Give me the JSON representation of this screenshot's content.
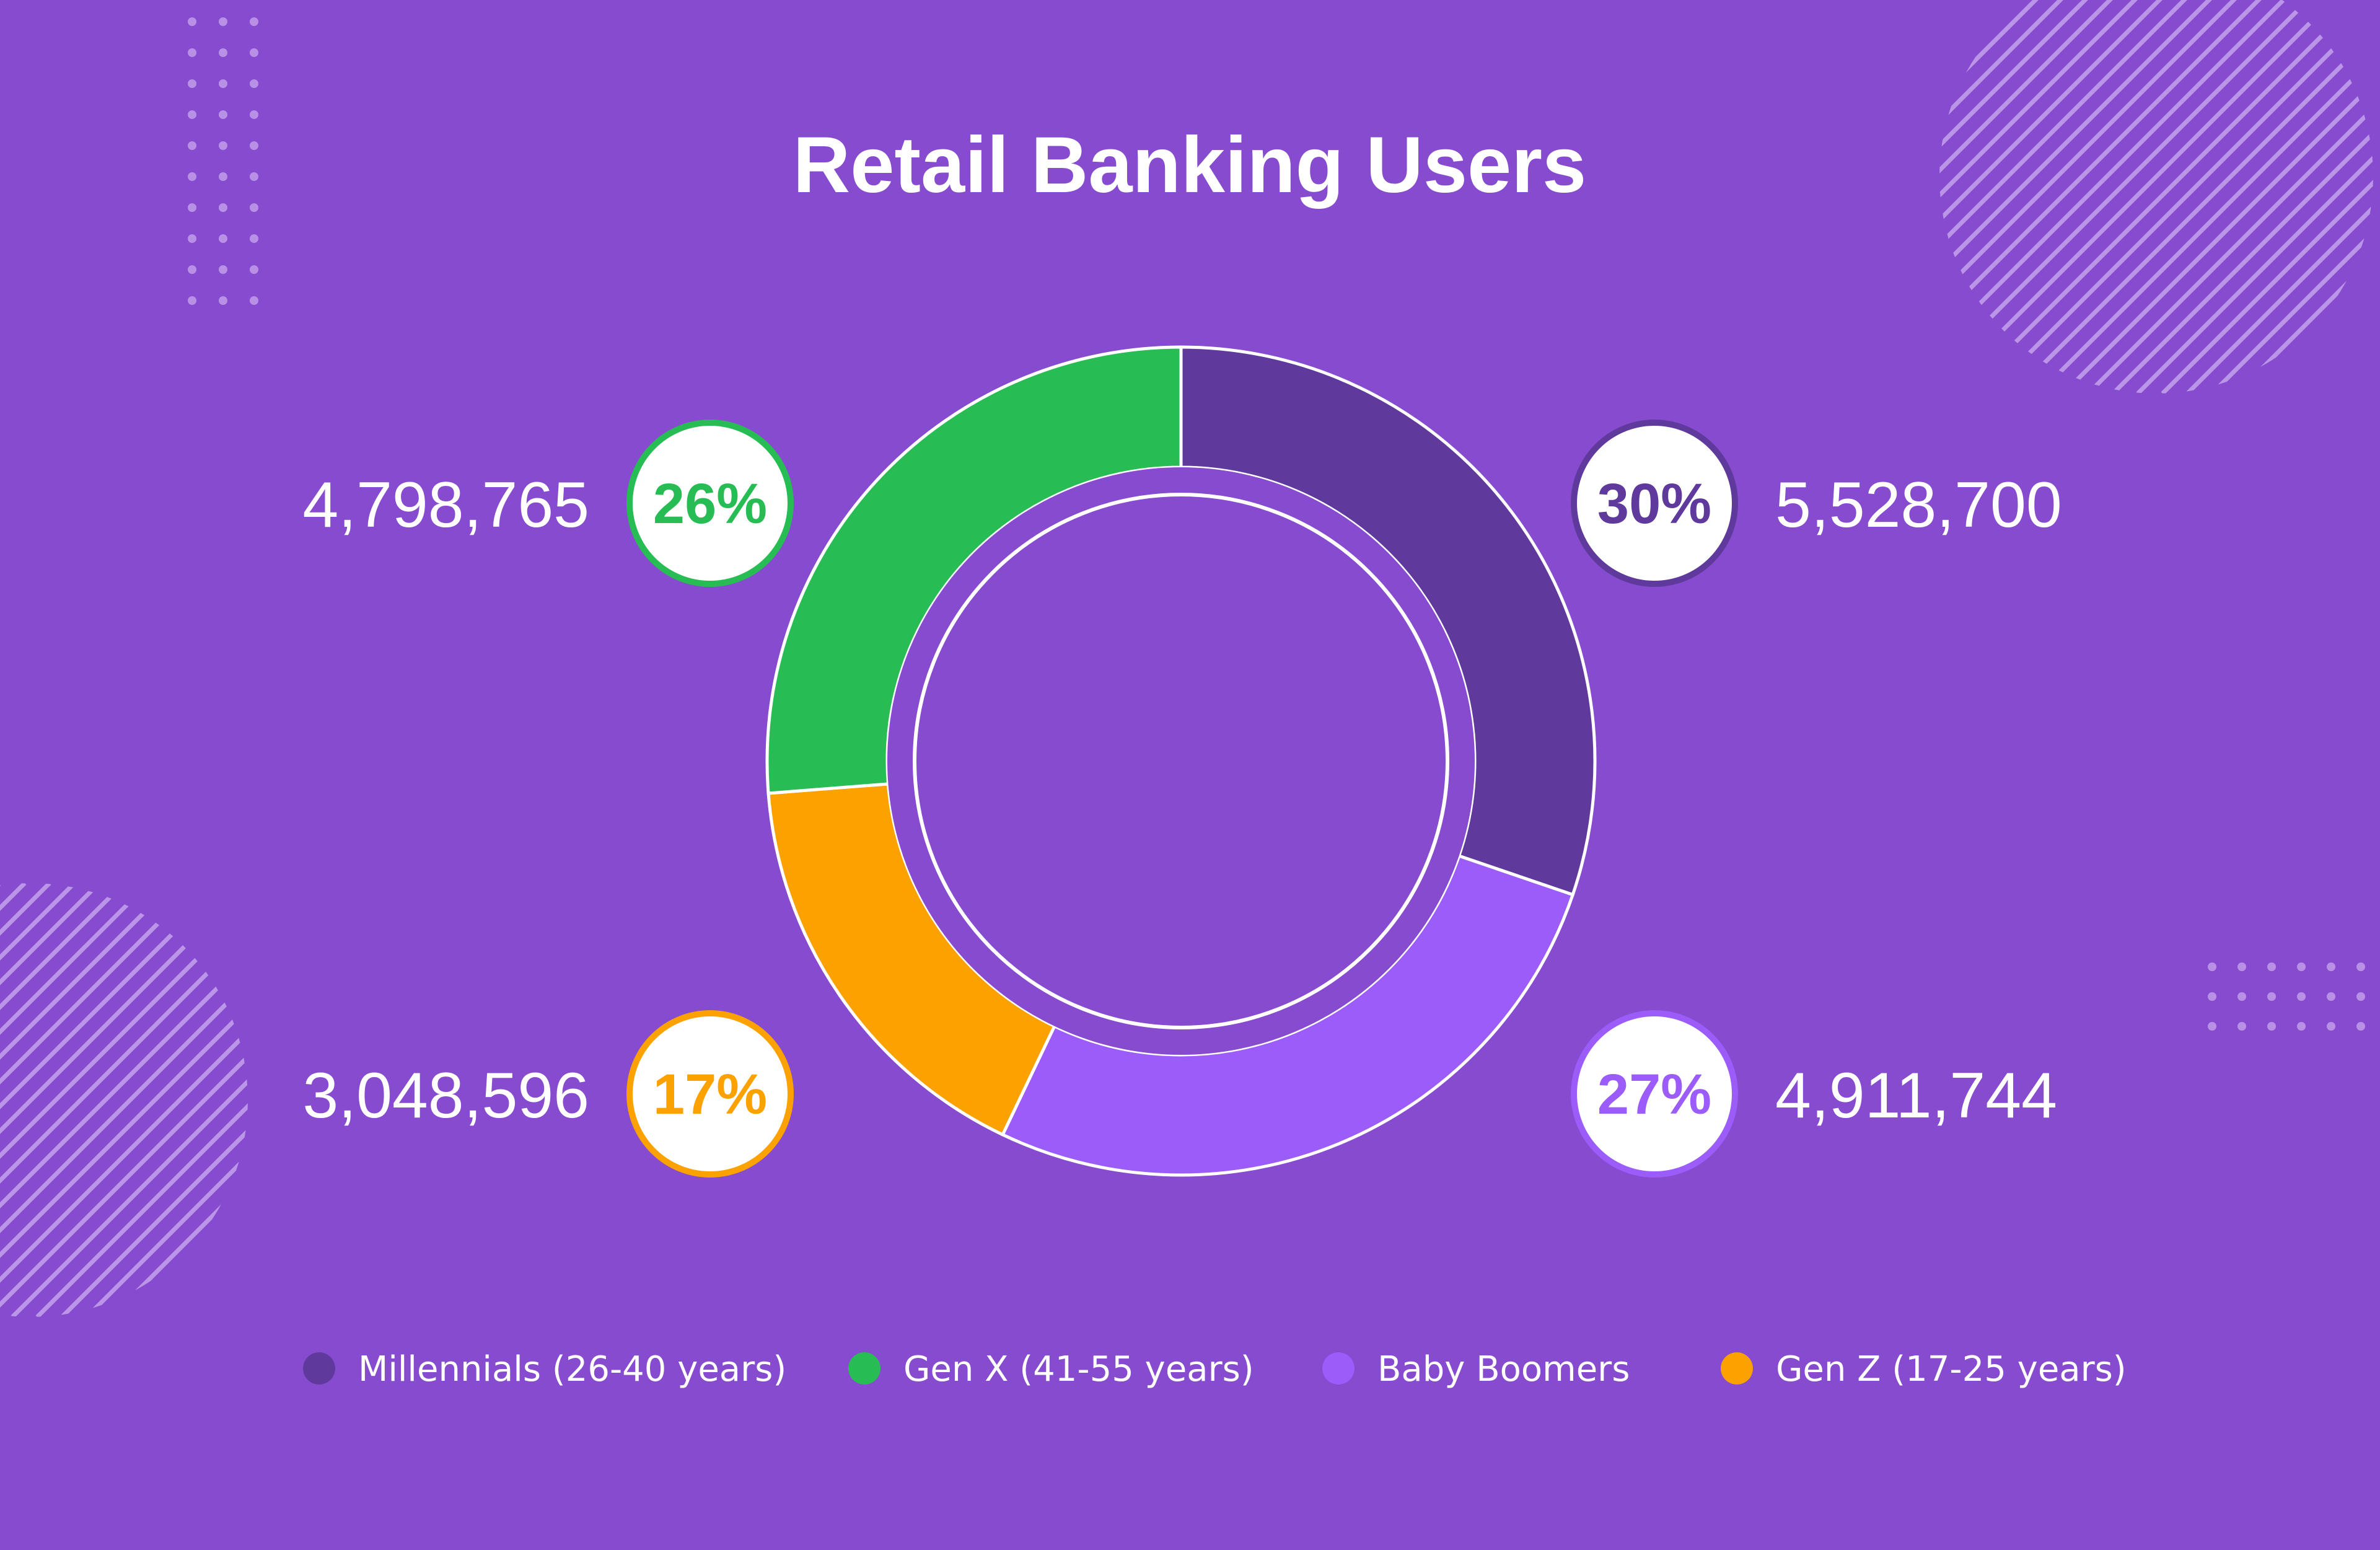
{
  "colors": {
    "background": "#864bce",
    "decor": "#c8a8ee",
    "ring_outline": "#ffffff"
  },
  "chart_data": {
    "type": "pie",
    "title": "Retail Banking Users",
    "donut": true,
    "series": [
      {
        "name": "Millennials (26-40 years)",
        "value": 5528700,
        "value_label": "5,528,700",
        "percent_label": "30%",
        "color": "#5f3a9c"
      },
      {
        "name": "Baby Boomers",
        "value": 4911744,
        "value_label": "4,911,744",
        "percent_label": "27%",
        "color": "#9b5cfa"
      },
      {
        "name": "Gen Z (17-25 years)",
        "value": 3048596,
        "value_label": "3,048,596",
        "percent_label": "17%",
        "color": "#fba100"
      },
      {
        "name": "Gen X (41-55 years)",
        "value": 4798765,
        "value_label": "4,798,765",
        "percent_label": "26%",
        "color": "#28bd54"
      }
    ],
    "legend_order": [
      "Millennials (26-40 years)",
      "Gen X (41-55 years)",
      "Baby Boomers",
      "Gen Z (17-25 years)"
    ],
    "legend_placement": "bottom"
  }
}
